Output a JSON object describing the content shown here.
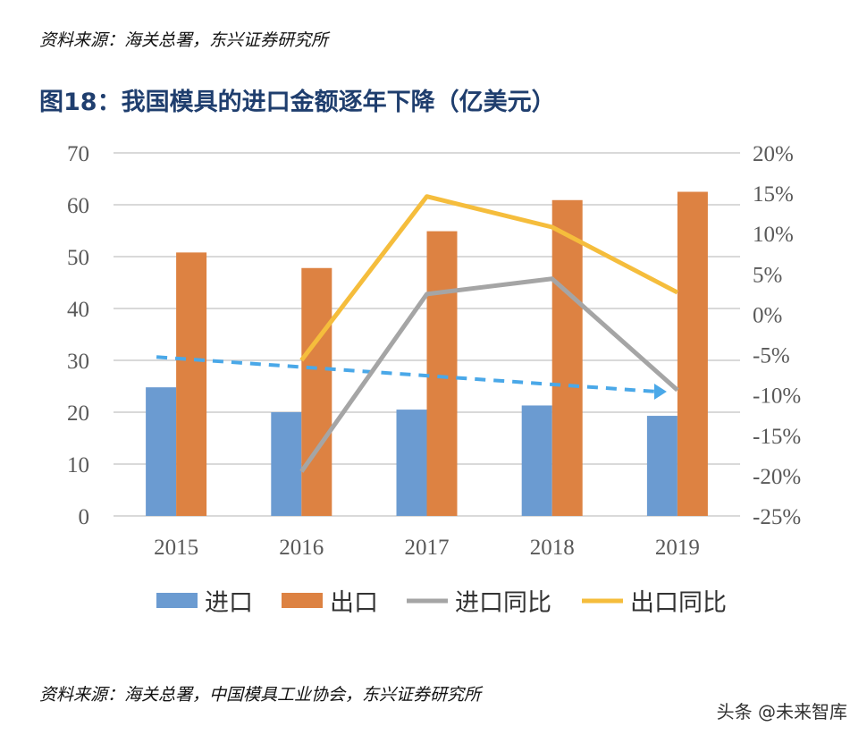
{
  "source_top": "资料来源：海关总署，东兴证券研究所",
  "source_bottom": "资料来源：海关总署，中国模具工业协会，东兴证券研究所",
  "watermark": "头条 @未来智库",
  "chart_data": {
    "type": "bar",
    "title": "图18：我国模具的进口金额逐年下降（亿美元）",
    "categories": [
      "2015",
      "2016",
      "2017",
      "2018",
      "2019"
    ],
    "y_left": {
      "range": [
        0,
        70
      ],
      "ticks": [
        "0",
        "10",
        "20",
        "30",
        "40",
        "50",
        "60",
        "70"
      ]
    },
    "y_right": {
      "range": [
        -25,
        20
      ],
      "ticks": [
        "-25%",
        "-20%",
        "-15%",
        "-10%",
        "-5%",
        "0%",
        "5%",
        "10%",
        "15%",
        "20%"
      ]
    },
    "grid": true,
    "legend": "bottom",
    "series": [
      {
        "name": "进口",
        "type": "bar",
        "axis": "left",
        "color": "#6b9bd1",
        "values": [
          24.8,
          20.0,
          20.5,
          21.3,
          19.3
        ]
      },
      {
        "name": "出口",
        "type": "bar",
        "axis": "left",
        "color": "#dd8242",
        "values": [
          50.8,
          47.8,
          54.9,
          60.9,
          62.5
        ]
      },
      {
        "name": "进口同比",
        "type": "line",
        "axis": "right",
        "color": "#a5a5a5",
        "values": [
          null,
          -19.5,
          2.5,
          4.4,
          -9.4
        ]
      },
      {
        "name": "出口同比",
        "type": "line",
        "axis": "right",
        "color": "#f5bd3c",
        "values": [
          null,
          -5.7,
          14.6,
          10.8,
          2.7
        ]
      }
    ],
    "annotation_arrow": {
      "style": "dashed",
      "color": "#4aa8e8",
      "axis": "right",
      "from": [
        "2015",
        -5.3
      ],
      "to": [
        "2019",
        -9.6
      ]
    }
  }
}
